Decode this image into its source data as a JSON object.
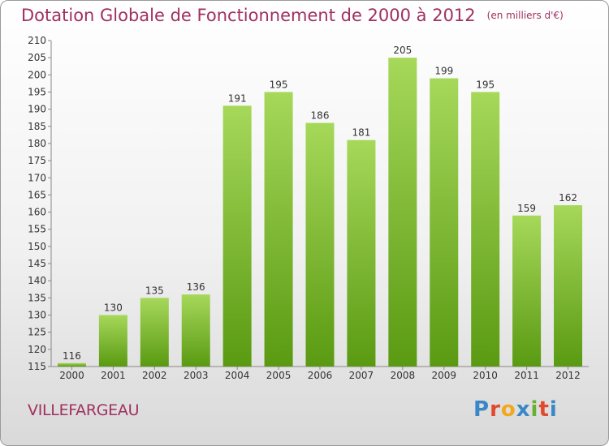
{
  "header": {
    "title": "Dotation Globale de Fonctionnement de 2000 à 2012",
    "subtitle": "(en milliers d'€)"
  },
  "footer": {
    "commune": "VILLEFARGEAU",
    "brand": "Proxiti"
  },
  "colors": {
    "title": "#a0305f",
    "bar_top": "#a6d85a",
    "bar_bottom": "#5a9a12",
    "brand": [
      "#3a87c8",
      "#e0492d",
      "#f2a81c",
      "#3a87c8",
      "#66b032",
      "#e0492d",
      "#3a87c8"
    ]
  },
  "chart_data": {
    "type": "bar",
    "categories": [
      "2000",
      "2001",
      "2002",
      "2003",
      "2004",
      "2005",
      "2006",
      "2007",
      "2008",
      "2009",
      "2010",
      "2011",
      "2012"
    ],
    "values": [
      116,
      130,
      135,
      136,
      191,
      195,
      186,
      181,
      205,
      199,
      195,
      159,
      162
    ],
    "title": "Dotation Globale de Fonctionnement de 2000 à 2012",
    "ylabel": "",
    "xlabel": "",
    "ylim": [
      115,
      210
    ],
    "yticks": [
      115,
      120,
      125,
      130,
      135,
      140,
      145,
      150,
      155,
      160,
      165,
      170,
      175,
      180,
      185,
      190,
      195,
      200,
      205,
      210
    ],
    "grid": false,
    "legend": "none"
  }
}
